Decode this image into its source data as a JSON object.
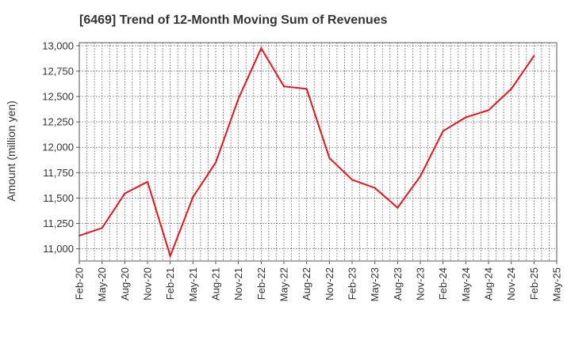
{
  "chart_data": {
    "type": "line",
    "title": "[6469]  Trend of 12-Month Moving Sum of Revenues",
    "xlabel": "",
    "ylabel": "Amount (million yen)",
    "ylim": [
      10880,
      13030
    ],
    "y_ticks": [
      11000,
      11250,
      11500,
      11750,
      12000,
      12250,
      12500,
      12750,
      13000
    ],
    "y_tick_labels": [
      "11,000",
      "11,250",
      "11,500",
      "11,750",
      "12,000",
      "12,250",
      "12,500",
      "12,750",
      "13,000"
    ],
    "x_tick_labels": [
      "Feb-20",
      "May-20",
      "Aug-20",
      "Nov-20",
      "Feb-21",
      "May-21",
      "Aug-21",
      "Nov-21",
      "Feb-22",
      "May-22",
      "Aug-22",
      "Nov-22",
      "Feb-23",
      "May-23",
      "Aug-23",
      "Nov-23",
      "Feb-24",
      "May-24",
      "Aug-24",
      "Nov-24",
      "Feb-25",
      "May-25"
    ],
    "grid": true,
    "series": [
      {
        "color": "#e8141b",
        "x": [
          "Feb-20",
          "May-20",
          "Aug-20",
          "Nov-20",
          "Feb-21",
          "May-21",
          "Aug-21",
          "Nov-21",
          "Feb-22",
          "May-22",
          "Aug-22",
          "Nov-22",
          "Feb-23",
          "May-23",
          "Aug-23",
          "Nov-23",
          "Feb-24",
          "May-24",
          "Aug-24",
          "Nov-24",
          "Feb-25"
        ],
        "values": [
          11130,
          11205,
          11545,
          11660,
          10930,
          11510,
          11850,
          12480,
          12975,
          12600,
          12575,
          11895,
          11680,
          11600,
          11405,
          11715,
          12160,
          12295,
          12365,
          12575,
          12900
        ]
      }
    ]
  }
}
